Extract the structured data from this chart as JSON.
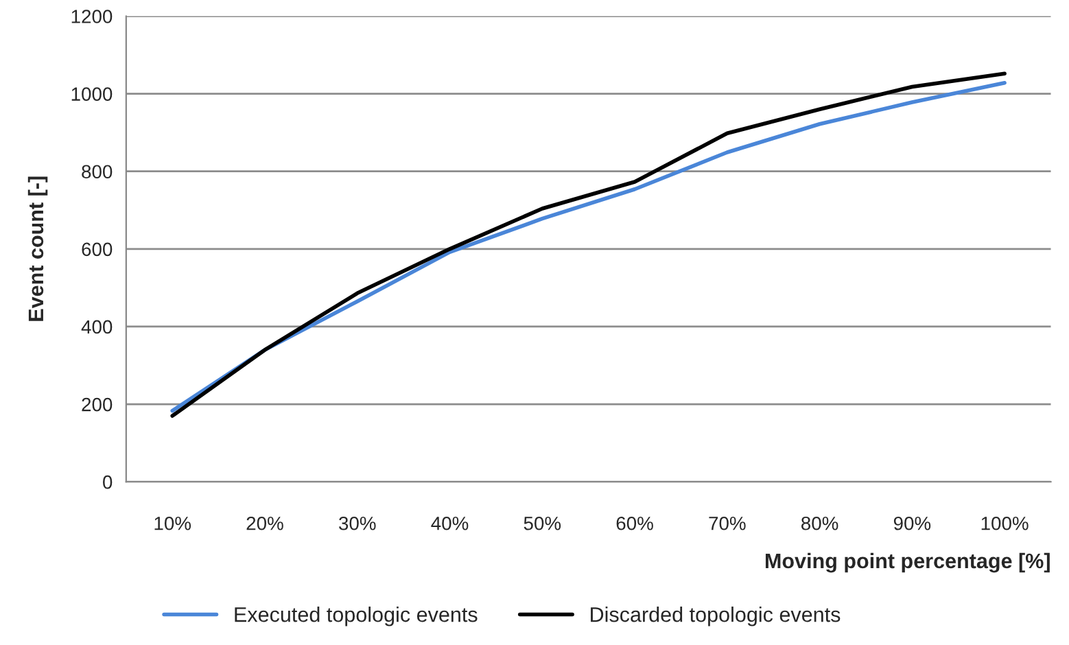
{
  "chart_data": {
    "type": "line",
    "xlabel": "Moving point percentage [%]",
    "ylabel": "Event count [-]",
    "categories": [
      "10%",
      "20%",
      "30%",
      "40%",
      "50%",
      "60%",
      "70%",
      "80%",
      "90%",
      "100%"
    ],
    "series": [
      {
        "name": "Executed topologic events",
        "color": "#4a86d8",
        "values": [
          183,
          340,
          465,
          592,
          678,
          754,
          849,
          922,
          978,
          1028
        ]
      },
      {
        "name": "Discarded topologic events",
        "color": "#000000",
        "values": [
          170,
          340,
          486,
          600,
          704,
          773,
          898,
          960,
          1018,
          1052
        ]
      }
    ],
    "ylim": [
      0,
      1200
    ],
    "yticks": [
      0,
      200,
      400,
      600,
      800,
      1000,
      1200
    ],
    "grid": "y",
    "legend": "bottom",
    "marker": "none",
    "line_style": "solid"
  }
}
